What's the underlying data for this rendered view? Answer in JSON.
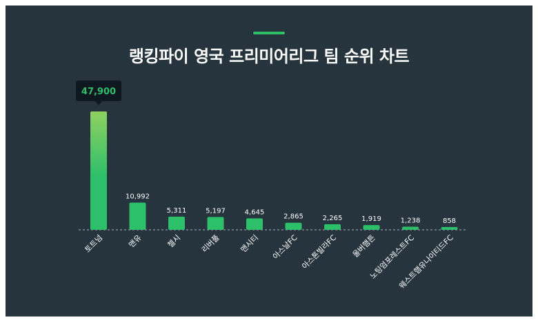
{
  "title": "랭킹파이 영국 프리미어리그 팀 순위 차트",
  "colors": {
    "background": "#26343d",
    "bar": "#2ebf6b",
    "bar_top_highlight": "#8fd160",
    "tooltip_bg": "#0f1820",
    "tooltip_text": "#2ebf6b",
    "text": "#ffffff"
  },
  "chart_data": {
    "type": "bar",
    "title": "랭킹파이 영국 프리미어리그 팀 순위 차트",
    "categories": [
      "토트넘",
      "맨유",
      "첼시",
      "리버풀",
      "맨시티",
      "아스날FC",
      "아스톤빌라FC",
      "울버햄튼",
      "노팅엄포레스트FC",
      "웨스트햄유나이티드FC"
    ],
    "values": [
      47900,
      10992,
      5311,
      5197,
      4645,
      2865,
      2265,
      1919,
      1238,
      858
    ],
    "value_labels": [
      "47,900",
      "10,992",
      "5,311",
      "5,197",
      "4,645",
      "2,865",
      "2,265",
      "1,919",
      "1,238",
      "858"
    ],
    "highlighted_index": 0,
    "ylim": [
      0,
      47900
    ],
    "grid": false,
    "legend": "none"
  }
}
